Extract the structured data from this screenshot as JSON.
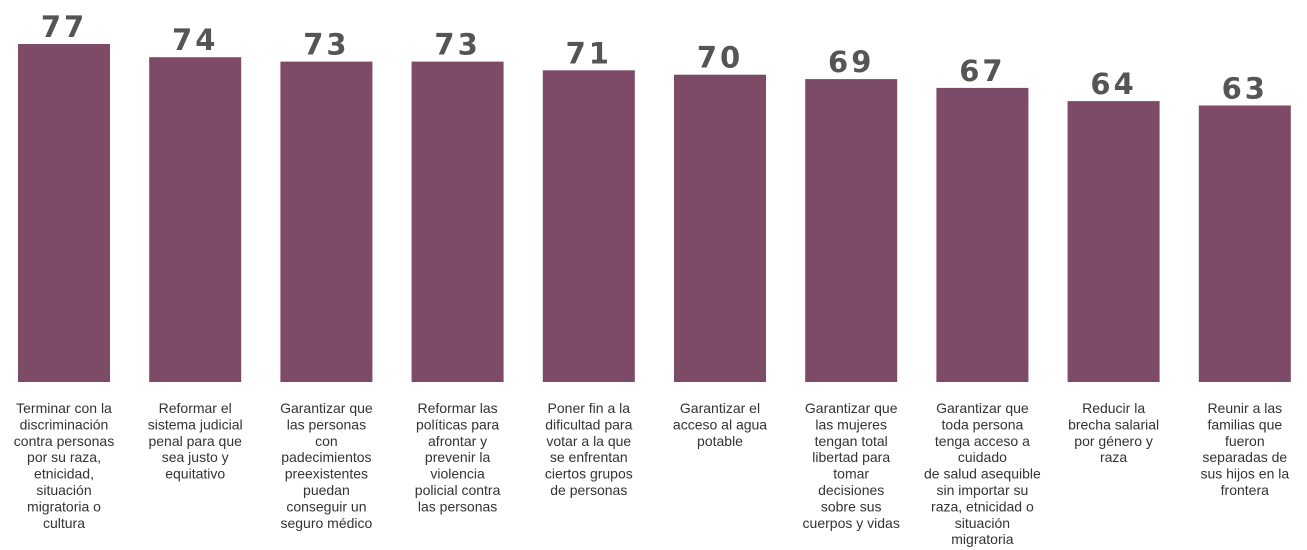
{
  "chart_data": {
    "type": "bar",
    "title": "",
    "xlabel": "",
    "ylabel": "",
    "ylim": [
      0,
      77
    ],
    "grid": false,
    "bar_color": "#7d4a68",
    "value_color": "#555555",
    "categories": [
      [
        "Terminar con la",
        "discriminación",
        "contra personas",
        "por su raza,",
        "etnicidad,",
        "situación",
        "migratoria o",
        "cultura"
      ],
      [
        "Reformar el",
        "sistema judicial",
        "penal para que",
        "sea justo y",
        "equitativo"
      ],
      [
        "Garantizar que",
        "las personas",
        "con",
        "padecimientos",
        "preexistentes",
        "puedan",
        "conseguir un",
        "seguro médico"
      ],
      [
        "Reformar las",
        "políticas para",
        "afrontar y",
        "prevenir la",
        "violencia",
        "policial contra",
        "las personas"
      ],
      [
        "Poner fin a la",
        "dificultad para",
        "votar a la que",
        "se enfrentan",
        "ciertos grupos",
        "de personas"
      ],
      [
        "Garantizar el",
        "acceso al agua",
        "potable"
      ],
      [
        "Garantizar que",
        "las mujeres",
        "tengan total",
        "libertad para",
        "tomar",
        "decisiones",
        "sobre sus",
        "cuerpos y vidas"
      ],
      [
        "Garantizar que",
        "toda persona",
        "tenga acceso a",
        "cuidado",
        "de salud asequible",
        "sin importar su",
        "raza, etnicidad o",
        "situación",
        "migratoria"
      ],
      [
        "Reducir la",
        "brecha salarial",
        "por género y",
        "raza"
      ],
      [
        "Reunir a las",
        "familias que",
        "fueron",
        "separadas de",
        "sus hijos en la",
        "frontera"
      ]
    ],
    "values": [
      77,
      74,
      73,
      73,
      71,
      70,
      69,
      67,
      64,
      63
    ]
  }
}
